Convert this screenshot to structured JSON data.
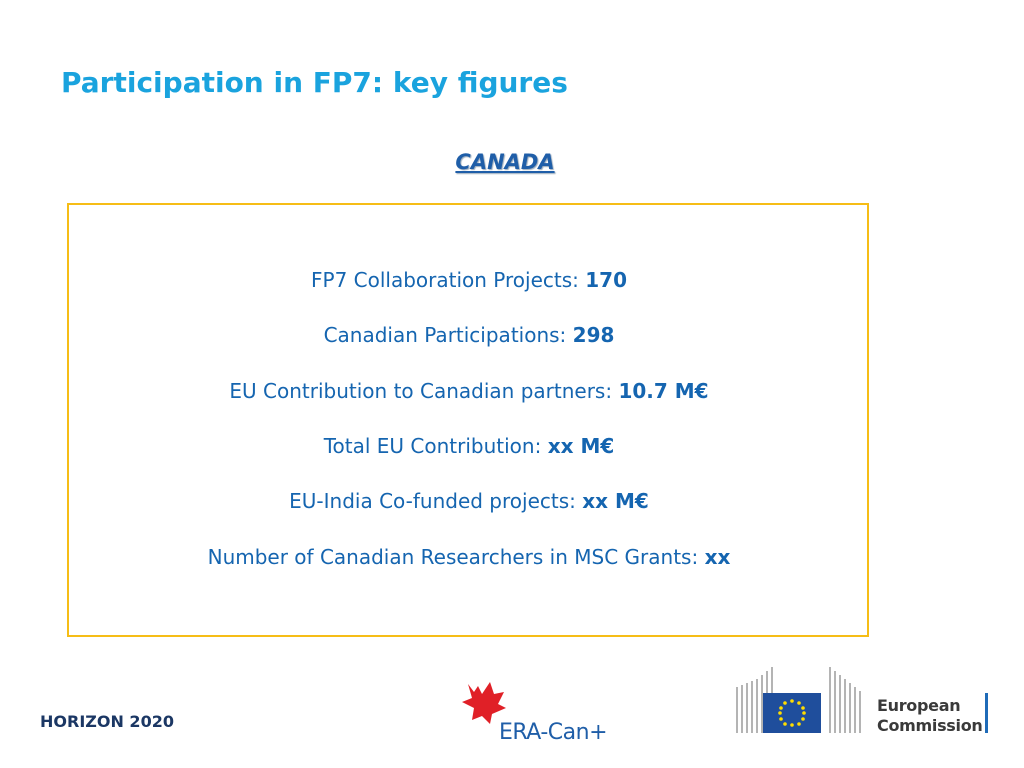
{
  "header": {
    "title": "Participation in FP7: key figures",
    "subtitle": "CANADA"
  },
  "figures": [
    {
      "label": "FP7 Collaboration Projects:",
      "value": "170"
    },
    {
      "label": "Canadian Participations:",
      "value": "298"
    },
    {
      "label": "EU Contribution to Canadian partners:",
      "value": "10.7 M€"
    },
    {
      "label": "Total EU Contribution:",
      "value": "xx M€"
    },
    {
      "label": "EU-India Co-funded projects:",
      "value": "xx M€"
    },
    {
      "label": "Number of Canadian Researchers in MSC Grants:",
      "value": "xx"
    }
  ],
  "footer": {
    "program": "HORIZON 2020",
    "partner_logo": "ERA-Can+",
    "commission_logo": [
      "European",
      "Commission"
    ]
  }
}
